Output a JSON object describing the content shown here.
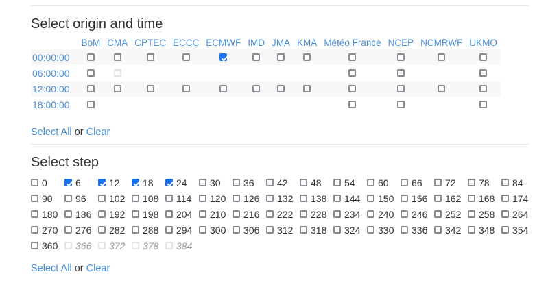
{
  "colors": {
    "link_blue": "#4a90d9",
    "heading_text": "#333333",
    "body_text": "#333333",
    "checked_blue": "#1a73e8",
    "checkbox_border": "#8a8a93",
    "disabled_border": "#e4e4e4",
    "disabled_text": "#9a9a9a",
    "stripe_bg": "#f8f8f8",
    "divider": "#e7e7e7"
  },
  "origin_section": {
    "title": "Select origin and time",
    "columns": [
      "BoM",
      "CMA",
      "CPTEC",
      "ECCC",
      "ECMWF",
      "IMD",
      "JMA",
      "KMA",
      "Météo France",
      "NCEP",
      "NCMRWF",
      "UKMO"
    ],
    "rows": [
      {
        "label": "00:00:00",
        "cells": [
          "unchecked",
          "unchecked",
          "unchecked",
          "unchecked",
          "checked",
          "unchecked",
          "unchecked",
          "unchecked",
          "unchecked",
          "unchecked",
          "unchecked",
          "unchecked"
        ]
      },
      {
        "label": "06:00:00",
        "cells": [
          "unchecked",
          "disabled",
          "none",
          "none",
          "none",
          "none",
          "none",
          "none",
          "unchecked",
          "unchecked",
          "none",
          "unchecked"
        ]
      },
      {
        "label": "12:00:00",
        "cells": [
          "unchecked",
          "unchecked",
          "unchecked",
          "unchecked",
          "unchecked",
          "unchecked",
          "unchecked",
          "unchecked",
          "unchecked",
          "unchecked",
          "unchecked",
          "unchecked"
        ]
      },
      {
        "label": "18:00:00",
        "cells": [
          "unchecked",
          "none",
          "none",
          "none",
          "none",
          "none",
          "none",
          "none",
          "unchecked",
          "unchecked",
          "none",
          "unchecked"
        ]
      }
    ],
    "select_all_label": "Select All",
    "or_label": "or",
    "clear_label": "Clear"
  },
  "step_section": {
    "title": "Select step",
    "steps": [
      "0",
      "6",
      "12",
      "18",
      "24",
      "30",
      "36",
      "42",
      "48",
      "54",
      "60",
      "66",
      "72",
      "78",
      "84",
      "90",
      "96",
      "102",
      "108",
      "114",
      "120",
      "126",
      "132",
      "138",
      "144",
      "150",
      "156",
      "162",
      "168",
      "174",
      "180",
      "186",
      "192",
      "198",
      "204",
      "210",
      "216",
      "222",
      "228",
      "234",
      "240",
      "246",
      "252",
      "258",
      "264",
      "270",
      "276",
      "282",
      "288",
      "294",
      "300",
      "306",
      "312",
      "318",
      "324",
      "330",
      "336",
      "342",
      "348",
      "354",
      "360",
      "366",
      "372",
      "378",
      "384"
    ],
    "checked": [
      "6",
      "12",
      "18",
      "24"
    ],
    "disabled": [
      "366",
      "372",
      "378",
      "384"
    ],
    "per_row": 15,
    "select_all_label": "Select All",
    "or_label": "or",
    "clear_label": "Clear"
  }
}
